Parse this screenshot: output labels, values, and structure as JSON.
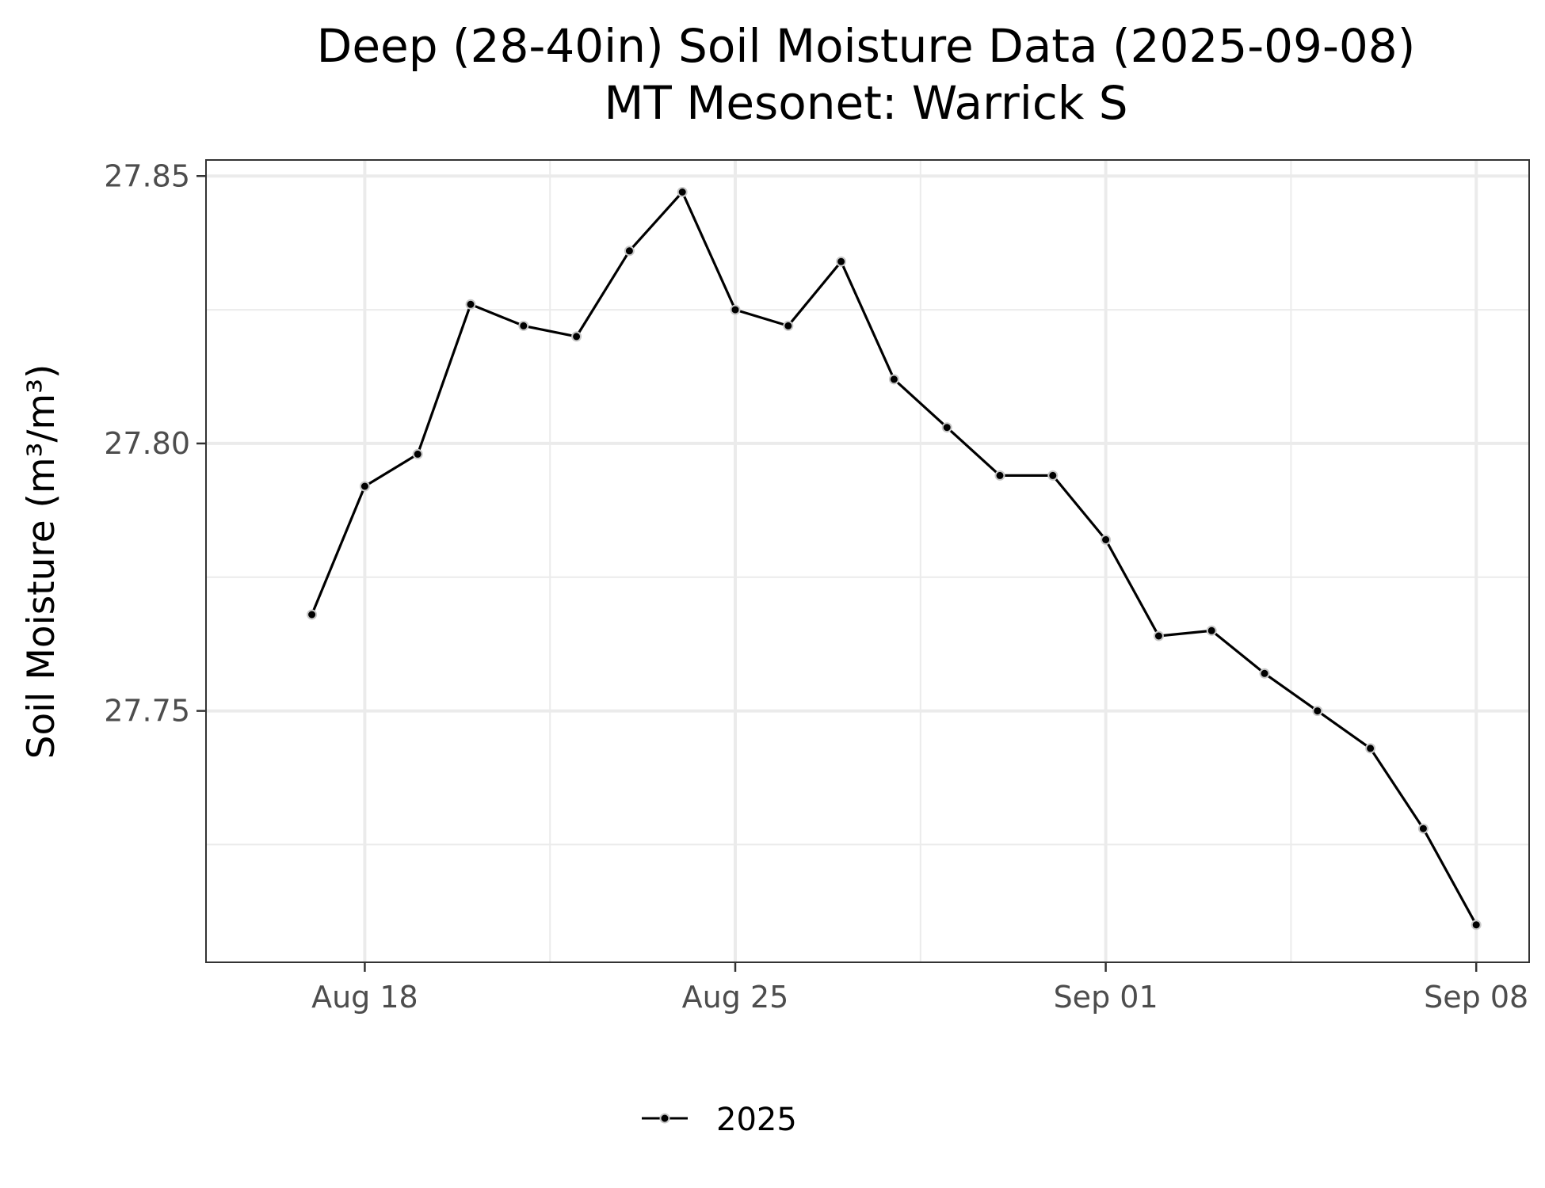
{
  "chart_data": {
    "type": "line",
    "title": "Deep (28-40in) Soil Moisture Data (2025-09-08)",
    "subtitle": "MT Mesonet: Warrick S",
    "xlabel": "",
    "ylabel": "Soil Moisture (m³/m³)",
    "x_tick_labels": [
      "Aug 18",
      "Aug 25",
      "Sep 01",
      "Sep 08"
    ],
    "x_tick_dates": [
      "2025-08-18",
      "2025-08-25",
      "2025-09-01",
      "2025-09-08"
    ],
    "y_tick_labels": [
      "27.75",
      "27.80",
      "27.85"
    ],
    "y_ticks": [
      27.75,
      27.8,
      27.85
    ],
    "xlim": [
      "2025-08-15",
      "2025-09-09"
    ],
    "ylim": [
      27.703,
      27.853
    ],
    "grid": true,
    "legend_position": "bottom",
    "series": [
      {
        "name": "2025",
        "color": "#000000",
        "x": [
          "2025-08-17",
          "2025-08-18",
          "2025-08-19",
          "2025-08-20",
          "2025-08-21",
          "2025-08-22",
          "2025-08-23",
          "2025-08-24",
          "2025-08-25",
          "2025-08-26",
          "2025-08-27",
          "2025-08-28",
          "2025-08-29",
          "2025-08-30",
          "2025-08-31",
          "2025-09-01",
          "2025-09-02",
          "2025-09-03",
          "2025-09-04",
          "2025-09-05",
          "2025-09-06",
          "2025-09-07",
          "2025-09-08"
        ],
        "values": [
          27.768,
          27.792,
          27.798,
          27.826,
          27.822,
          27.82,
          27.836,
          27.847,
          27.825,
          27.822,
          27.834,
          27.812,
          27.803,
          27.794,
          27.794,
          27.782,
          27.764,
          27.765,
          27.757,
          27.75,
          27.743,
          27.728,
          27.71
        ]
      }
    ]
  }
}
